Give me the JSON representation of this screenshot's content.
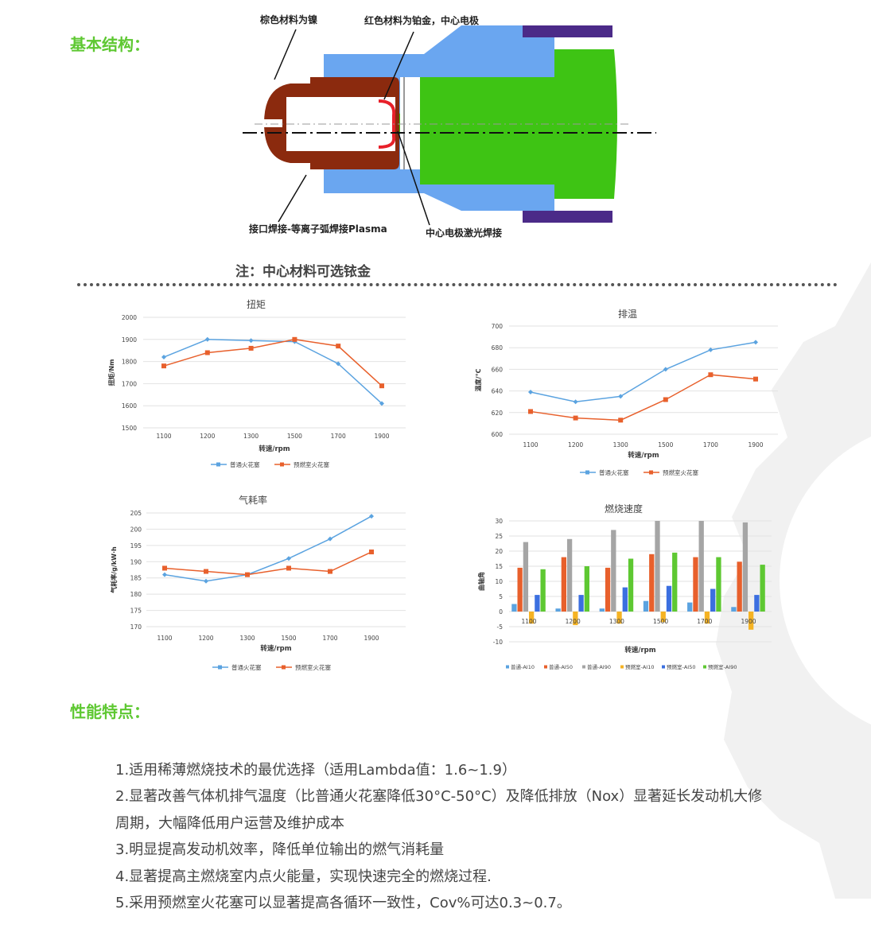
{
  "sections": {
    "structure": "基本结构：",
    "features": "性能特点："
  },
  "diagram": {
    "label_nickel": "棕色材料为镍",
    "label_platinum": "红色材料为铂金，中心电极",
    "label_plasma": "接口焊接-等离子弧焊接Plasma",
    "label_laser": "中心电极激光焊接",
    "colors": {
      "body": "#6aa6f0",
      "nickel": "#8b2a0e",
      "platinum": "#e8202a",
      "core": "#3ec414",
      "terminal": "#4b2a88"
    }
  },
  "note": "注：中心材料可选铱金",
  "features": [
    "1.适用稀薄燃烧技术的最优选择（适用Lambda值：1.6~1.9）",
    "2.显著改善气体机排气温度（比普通火花塞降低30°C-50°C）及降低排放（Nox）显著延长发动机大修",
    "周期，大幅降低用户运营及维护成本",
    "3.明显提高发动机效率，降低单位输出的燃气消耗量",
    "4.显著提高主燃烧室内点火能量，实现快速完全的燃烧过程.",
    "5.采用预燃室火花塞可以显著提高各循环一致性，Cov%可达0.3~0.7。"
  ],
  "chart_data": [
    {
      "type": "line",
      "title": "扭矩",
      "xlabel": "转速/rpm",
      "ylabel": "扭矩/Nm",
      "categories": [
        "1100",
        "1200",
        "1300",
        "1500",
        "1700",
        "1900"
      ],
      "ylim": [
        1500,
        2000
      ],
      "yticks": [
        1500,
        1600,
        1700,
        1800,
        1900,
        2000
      ],
      "grid": true,
      "legend": "bottom",
      "series": [
        {
          "name": "普通火花塞",
          "color": "#5ba3e0",
          "marker": "diamond",
          "values": [
            1820,
            1900,
            1895,
            1890,
            1790,
            1610
          ]
        },
        {
          "name": "预燃室火花塞",
          "color": "#e8602c",
          "marker": "square",
          "values": [
            1780,
            1840,
            1860,
            1900,
            1870,
            1690
          ]
        }
      ]
    },
    {
      "type": "line",
      "title": "排温",
      "xlabel": "转速/rpm",
      "ylabel": "温度/℃",
      "categories": [
        "1100",
        "1200",
        "1300",
        "1500",
        "1700",
        "1900"
      ],
      "ylim": [
        600,
        700
      ],
      "yticks": [
        600,
        620,
        640,
        660,
        680,
        700
      ],
      "grid": true,
      "legend": "bottom",
      "series": [
        {
          "name": "普通火花塞",
          "color": "#5ba3e0",
          "marker": "diamond",
          "values": [
            639,
            630,
            635,
            660,
            678,
            685
          ]
        },
        {
          "name": "预燃室火花塞",
          "color": "#e8602c",
          "marker": "square",
          "values": [
            621,
            615,
            613,
            632,
            655,
            651
          ]
        }
      ]
    },
    {
      "type": "line",
      "title": "气耗率",
      "xlabel": "转速/rpm",
      "ylabel": "气耗率/g/kW·h",
      "categories": [
        "1100",
        "1200",
        "1300",
        "1500",
        "1700",
        "1900"
      ],
      "ylim": [
        170,
        205
      ],
      "yticks": [
        170,
        175,
        180,
        185,
        190,
        195,
        200,
        205
      ],
      "grid": true,
      "legend": "bottom",
      "series": [
        {
          "name": "普通火花塞",
          "color": "#5ba3e0",
          "marker": "diamond",
          "values": [
            186,
            184,
            186,
            191,
            197,
            204
          ]
        },
        {
          "name": "预燃室火花塞",
          "color": "#e8602c",
          "marker": "square",
          "values": [
            188,
            187,
            186,
            188,
            187,
            193
          ]
        }
      ]
    },
    {
      "type": "bar",
      "title": "燃烧速度",
      "xlabel": "转速/rpm",
      "ylabel": "曲轴角",
      "categories": [
        "1100",
        "1200",
        "1300",
        "1500",
        "1700",
        "1900"
      ],
      "ylim": [
        -10,
        30
      ],
      "yticks": [
        -10,
        -5,
        0,
        5,
        10,
        15,
        20,
        25,
        30
      ],
      "grid": true,
      "legend": "bottom",
      "series": [
        {
          "name": "普通-AI10",
          "color": "#5ba3e0",
          "values": [
            2.5,
            1,
            1,
            3.5,
            3,
            1.5
          ]
        },
        {
          "name": "普通-AI50",
          "color": "#e8602c",
          "values": [
            14.5,
            18,
            14.5,
            19,
            18,
            16.5
          ]
        },
        {
          "name": "普通-AI90",
          "color": "#a5a5a5",
          "values": [
            23,
            24,
            27,
            30,
            30,
            29.5
          ]
        },
        {
          "name": "预燃室-AI10",
          "color": "#f5b324",
          "values": [
            -4,
            -4.5,
            -4,
            -3.5,
            -4,
            -6
          ]
        },
        {
          "name": "预燃室-AI50",
          "color": "#3b6fe0",
          "values": [
            5.5,
            5.5,
            8,
            8.5,
            7.5,
            5.5
          ]
        },
        {
          "name": "预燃室-AI90",
          "color": "#5ec832",
          "values": [
            14,
            15,
            17.5,
            19.5,
            18,
            15.5
          ]
        }
      ]
    }
  ]
}
